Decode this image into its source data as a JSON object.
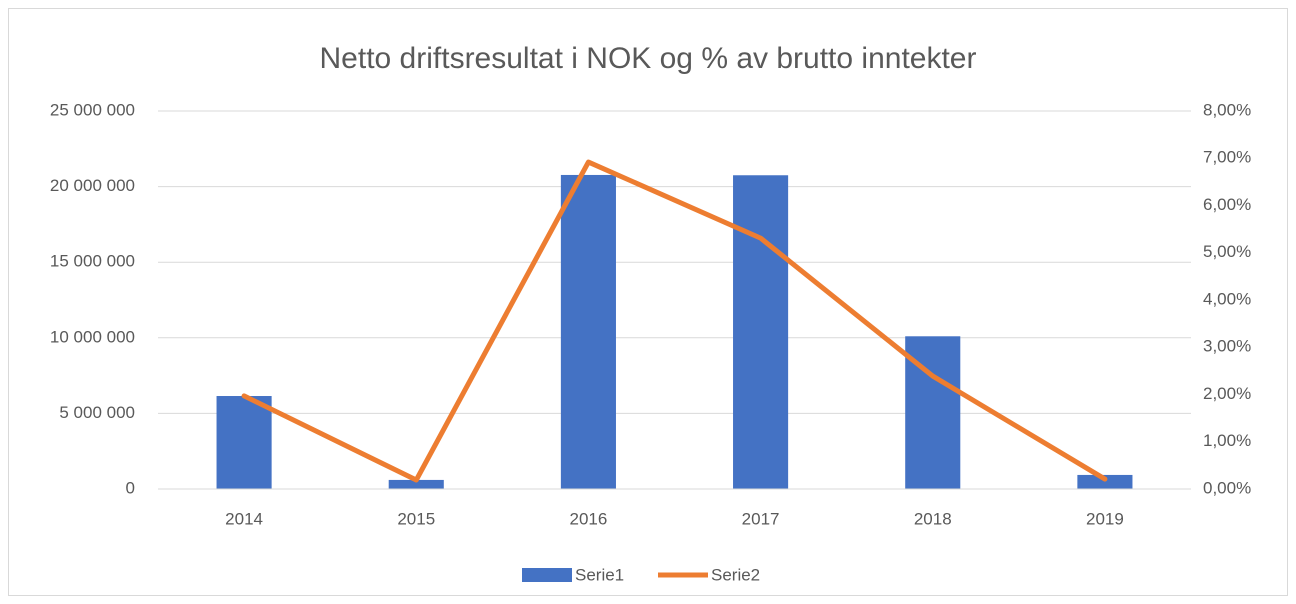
{
  "chart_data": {
    "type": "combo",
    "title": "Netto driftsresultat i NOK og % av brutto inntekter",
    "categories": [
      "2014",
      "2015",
      "2016",
      "2017",
      "2018",
      "2019"
    ],
    "series": [
      {
        "name": "Serie1",
        "type": "bar",
        "color": "#4472c4",
        "axis": "y",
        "values": [
          6150000,
          600000,
          20770000,
          20750000,
          10100000,
          930000
        ]
      },
      {
        "name": "Serie2",
        "type": "line",
        "color": "#ed7d31",
        "axis": "y2",
        "values": [
          1.97,
          0.19,
          6.92,
          5.31,
          2.39,
          0.21
        ]
      }
    ],
    "ylim": [
      0,
      25000000
    ],
    "yticks": [
      0,
      {
        "value": 5000000,
        "label": "5 000 000"
      },
      {
        "value": 10000000,
        "label": "10 000 000"
      },
      {
        "value": 15000000,
        "label": "15 000 000"
      },
      {
        "value": 20000000,
        "label": "20 000 000"
      },
      {
        "value": 25000000,
        "label": "25 000 000"
      }
    ],
    "y2lim": [
      0,
      8
    ],
    "y2ticks": [
      {
        "value": 0,
        "label": "0,00%"
      },
      {
        "value": 1,
        "label": "1,00%"
      },
      {
        "value": 2,
        "label": "2,00%"
      },
      {
        "value": 3,
        "label": "3,00%"
      },
      {
        "value": 4,
        "label": "4,00%"
      },
      {
        "value": 5,
        "label": "5,00%"
      },
      {
        "value": 6,
        "label": "6,00%"
      },
      {
        "value": 7,
        "label": "7,00%"
      },
      {
        "value": 8,
        "label": "8,00%"
      }
    ],
    "grid": true,
    "legend": "bottom"
  }
}
